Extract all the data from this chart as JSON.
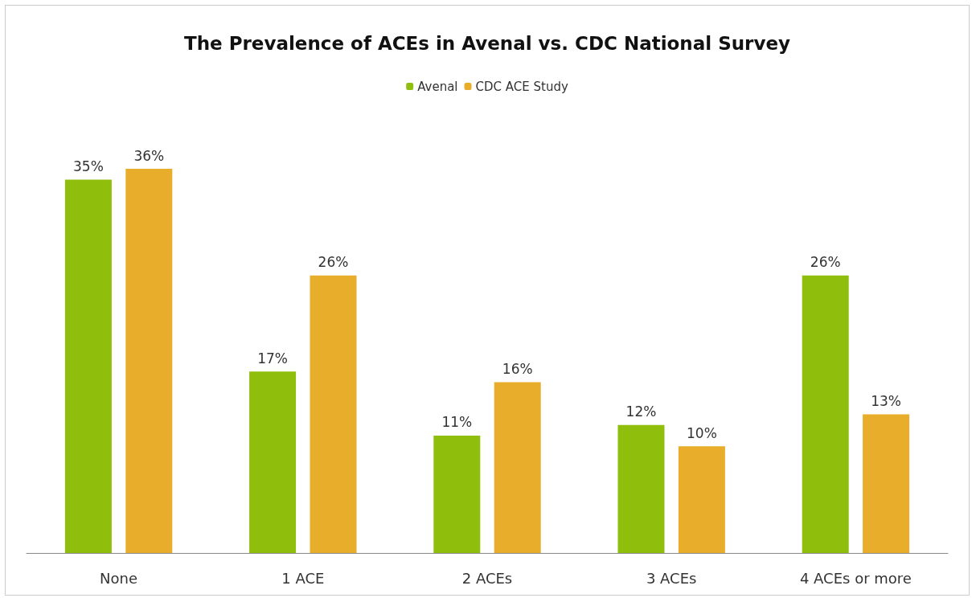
{
  "chart_data": {
    "type": "bar",
    "title": "The Prevalence of ACEs in Avenal vs. CDC National Survey",
    "categories": [
      "None",
      "1 ACE",
      "2 ACEs",
      "3 ACEs",
      "4 ACEs or more"
    ],
    "series": [
      {
        "name": "Avenal",
        "color": "#8fbe0c",
        "values": [
          35,
          17,
          11,
          12,
          26
        ],
        "value_labels": [
          "35%",
          "17%",
          "11%",
          "12%",
          "26%"
        ]
      },
      {
        "name": "CDC ACE Study",
        "color": "#e8ad2b",
        "values": [
          36,
          26,
          16,
          10,
          13
        ],
        "value_labels": [
          "36%",
          "26%",
          "16%",
          "10%",
          "13%"
        ]
      }
    ],
    "legend": "top"
  }
}
